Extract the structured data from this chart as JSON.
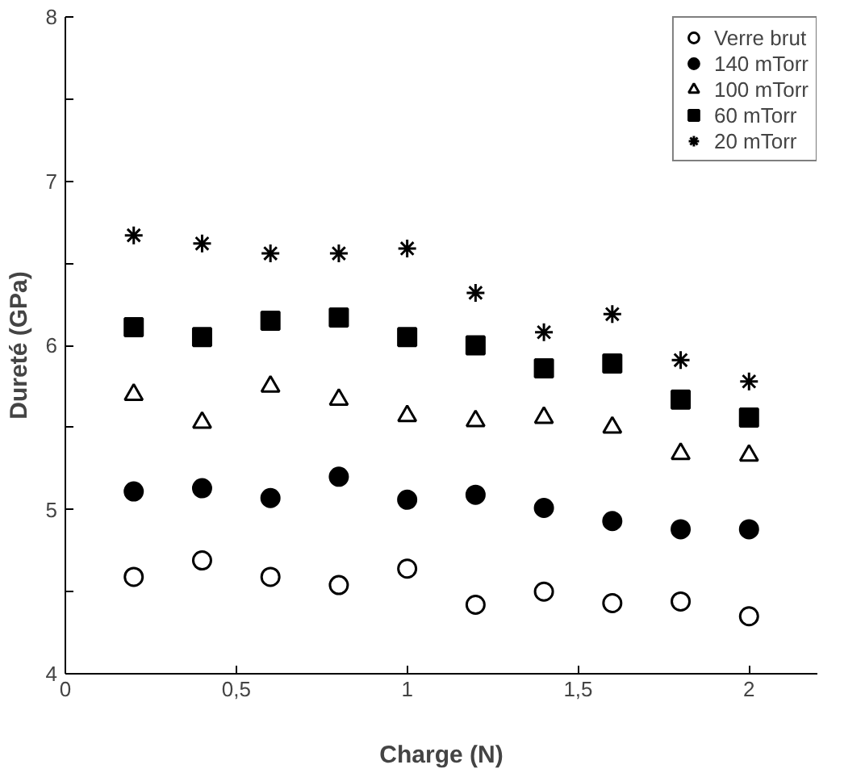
{
  "chart_data": {
    "type": "scatter",
    "xlabel": "Charge (N)",
    "ylabel": "Dureté (GPa)",
    "x": [
      0.2,
      0.4,
      0.6,
      0.8,
      1.0,
      1.2,
      1.4,
      1.6,
      1.8,
      2.0
    ],
    "xlim": [
      0,
      2.2
    ],
    "xticks": [
      0,
      {
        "value": 0.5,
        "label": "0,5"
      },
      1,
      {
        "value": 1.5,
        "label": "1,5"
      },
      2
    ],
    "ylim": [
      4,
      8
    ],
    "yticks": [
      4,
      {
        "value": 4.5,
        "label": null
      },
      5,
      {
        "value": 5.5,
        "label": null
      },
      6,
      {
        "value": 6.5,
        "label": null
      },
      7,
      {
        "value": 7.5,
        "label": null
      },
      8
    ],
    "grid": false,
    "legend": "top right",
    "series": [
      {
        "name": "Verre brut",
        "color": "#000000",
        "marker": "circle_open",
        "values": [
          4.59,
          4.69,
          4.59,
          4.54,
          4.64,
          4.42,
          4.5,
          4.43,
          4.44,
          4.35
        ]
      },
      {
        "name": "140 mTorr",
        "color": "#000000",
        "marker": "circle",
        "values": [
          5.11,
          5.13,
          5.07,
          5.2,
          5.06,
          5.09,
          5.01,
          4.93,
          4.88,
          4.88
        ]
      },
      {
        "name": "100 mTorr",
        "color": "#000000",
        "marker": "triangle_open",
        "values": [
          5.7,
          5.53,
          5.75,
          5.67,
          5.57,
          5.54,
          5.56,
          5.5,
          5.34,
          5.33
        ]
      },
      {
        "name": "60 mTorr",
        "color": "#000000",
        "marker": "square",
        "values": [
          6.11,
          6.05,
          6.15,
          6.17,
          6.05,
          6.0,
          5.86,
          5.89,
          5.67,
          5.56
        ]
      },
      {
        "name": "20 mTorr",
        "color": "#000000",
        "marker": "cross",
        "values": [
          6.67,
          6.62,
          6.56,
          6.56,
          6.59,
          6.32,
          6.08,
          6.19,
          5.91,
          5.78
        ]
      }
    ]
  }
}
